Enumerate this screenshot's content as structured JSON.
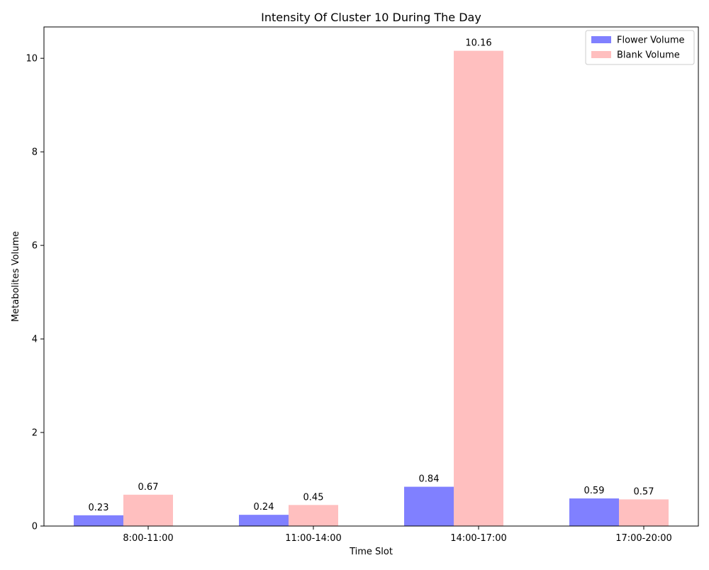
{
  "chart_data": {
    "type": "bar",
    "title": "Intensity Of Cluster 10 During The Day",
    "xlabel": "Time Slot",
    "ylabel": "Metabolites Volume",
    "categories": [
      "8:00-11:00",
      "11:00-14:00",
      "14:00-17:00",
      "17:00-20:00"
    ],
    "series": [
      {
        "name": "Flower Volume",
        "values": [
          0.23,
          0.24,
          0.84,
          0.59
        ],
        "color": "#8080ff",
        "labels": [
          "0.23",
          "0.24",
          "0.84",
          "0.59"
        ]
      },
      {
        "name": "Blank Volume",
        "values": [
          0.67,
          0.45,
          10.16,
          0.57
        ],
        "color": "#ffbfbf",
        "labels": [
          "0.67",
          "0.45",
          "10.16",
          "0.57"
        ]
      }
    ],
    "ylim": [
      0,
      10.67
    ],
    "yticks": [
      0,
      2,
      4,
      6,
      8,
      10
    ],
    "ytick_labels": [
      "0",
      "2",
      "4",
      "6",
      "8",
      "10"
    ],
    "grid": false,
    "legend_position": "top-right"
  }
}
